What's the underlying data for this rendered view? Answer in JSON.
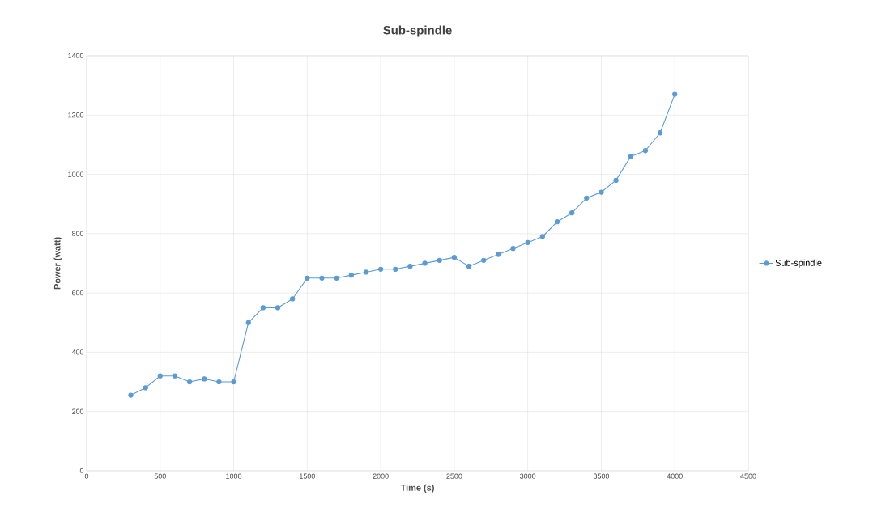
{
  "chart_data": {
    "type": "line",
    "title": "Sub-spindle",
    "xlabel": "Time (s)",
    "ylabel": "Power (watt)",
    "x": [
      300,
      400,
      500,
      600,
      700,
      800,
      900,
      1000,
      1100,
      1200,
      1300,
      1400,
      1500,
      1600,
      1700,
      1800,
      1900,
      2000,
      2100,
      2200,
      2300,
      2400,
      2500,
      2600,
      2700,
      2800,
      2900,
      3000,
      3100,
      3200,
      3300,
      3400,
      3500,
      3600,
      3700,
      3800,
      3900,
      4000
    ],
    "series": [
      {
        "name": "Sub-spindle",
        "color": "#5b9bd5",
        "values": [
          255,
          280,
          320,
          320,
          300,
          310,
          300,
          300,
          500,
          550,
          550,
          580,
          650,
          650,
          650,
          660,
          670,
          680,
          680,
          690,
          700,
          710,
          720,
          690,
          710,
          730,
          750,
          770,
          790,
          840,
          870,
          920,
          940,
          980,
          1060,
          1080,
          1140,
          1270
        ]
      }
    ],
    "xlim": [
      0,
      4500
    ],
    "ylim": [
      0,
      1400
    ],
    "xticks": [
      0,
      500,
      1000,
      1500,
      2000,
      2500,
      3000,
      3500,
      4000,
      4500
    ],
    "yticks": [
      0,
      200,
      400,
      600,
      800,
      1000,
      1200,
      1400
    ],
    "grid": true,
    "legend": "right",
    "marker": "circle",
    "line_style": "solid"
  }
}
